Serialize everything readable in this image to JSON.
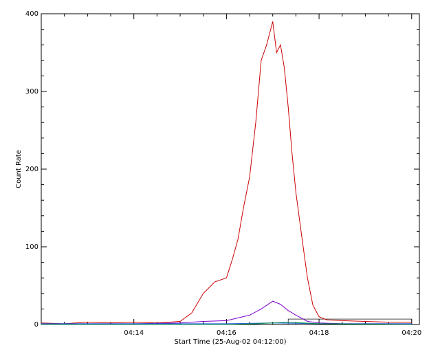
{
  "chart_data": {
    "type": "line",
    "title": "",
    "xlabel": "Start Time (25-Aug-02 04:12:00)",
    "ylabel": "Count Rate",
    "x_unit": "time (HH:MM, 25-Aug-02)",
    "xlim": [
      "04:12:00",
      "04:20:10"
    ],
    "ylim": [
      0,
      400
    ],
    "x_ticks": [
      "04:14",
      "04:16",
      "04:18",
      "04:20"
    ],
    "y_ticks": [
      0,
      100,
      200,
      300,
      400
    ],
    "grid": false,
    "legend": "none",
    "box_outline": {
      "x_start": "04:17:20",
      "x_end": "04:20:00",
      "y_top": 7
    },
    "series": [
      {
        "color": "#cc0000",
        "x": [
          "04:12:00",
          "04:12:30",
          "04:13:00",
          "04:13:30",
          "04:14:00",
          "04:14:30",
          "04:15:00",
          "04:15:15",
          "04:15:30",
          "04:15:45",
          "04:16:00",
          "04:16:08",
          "04:16:15",
          "04:16:22",
          "04:16:30",
          "04:16:38",
          "04:16:45",
          "04:16:52",
          "04:17:00",
          "04:17:05",
          "04:17:10",
          "04:17:15",
          "04:17:20",
          "04:17:25",
          "04:17:30",
          "04:17:38",
          "04:17:45",
          "04:17:52",
          "04:18:00",
          "04:18:10",
          "04:18:30",
          "04:19:00",
          "04:19:30",
          "04:20:00"
        ],
        "y": [
          2,
          1,
          3,
          2,
          3,
          2,
          4,
          15,
          40,
          55,
          60,
          85,
          110,
          150,
          190,
          260,
          340,
          360,
          390,
          350,
          360,
          330,
          280,
          220,
          170,
          110,
          60,
          25,
          10,
          6,
          5,
          4,
          3,
          3
        ]
      },
      {
        "color": "#7a00cc",
        "x": [
          "04:12:00",
          "04:13:00",
          "04:14:00",
          "04:15:00",
          "04:15:30",
          "04:16:00",
          "04:16:30",
          "04:16:45",
          "04:17:00",
          "04:17:10",
          "04:17:20",
          "04:17:30",
          "04:17:45",
          "04:18:00",
          "04:18:30",
          "04:19:00",
          "04:20:00"
        ],
        "y": [
          1,
          1,
          1,
          2,
          4,
          5,
          12,
          20,
          30,
          26,
          18,
          12,
          4,
          2,
          1,
          1,
          1
        ]
      },
      {
        "color": "#1a5fd6",
        "x": [
          "04:12:00",
          "04:13:00",
          "04:14:00",
          "04:15:00",
          "04:16:00",
          "04:17:00",
          "04:18:00",
          "04:19:00",
          "04:20:00"
        ],
        "y": [
          1,
          1,
          1,
          1,
          1,
          2,
          1,
          1,
          1
        ]
      },
      {
        "color": "#008c46",
        "x": [
          "04:12:00",
          "04:14:00",
          "04:16:00",
          "04:16:40",
          "04:17:00",
          "04:17:20",
          "04:17:40",
          "04:18:00",
          "04:20:00"
        ],
        "y": [
          0,
          0,
          0,
          1,
          2,
          3,
          2,
          1,
          0
        ]
      }
    ]
  }
}
